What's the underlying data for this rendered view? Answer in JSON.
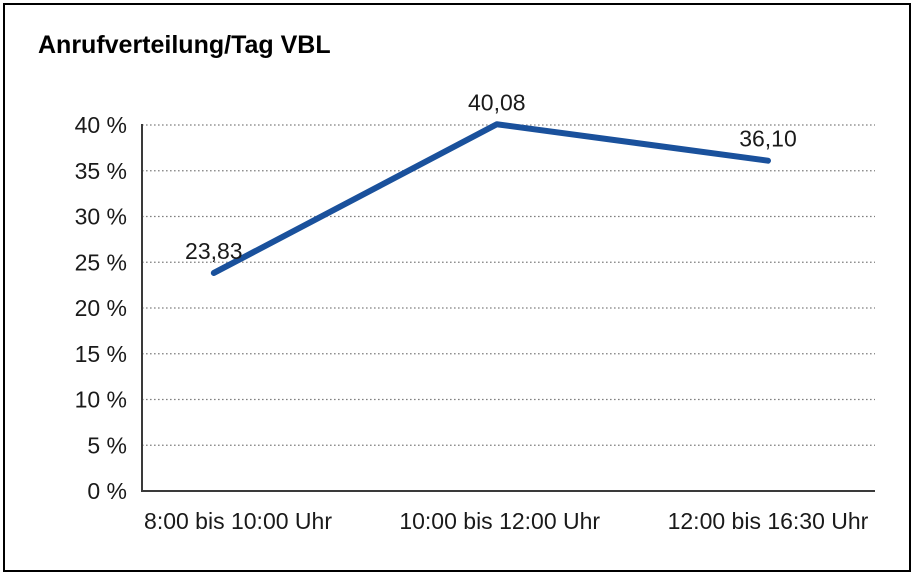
{
  "chart_data": {
    "type": "line",
    "title": "Anrufverteilung/Tag VBL",
    "categories": [
      "8:00 bis 10:00 Uhr",
      "10:00 bis 12:00 Uhr",
      "12:00 bis 16:30 Uhr"
    ],
    "series": [
      {
        "values": [
          23.83,
          40.08,
          36.1
        ]
      }
    ],
    "data_labels": [
      "23,83",
      "40,08",
      "36,10"
    ],
    "ytick_labels": [
      "0 %",
      "5 %",
      "10 %",
      "15 %",
      "20 %",
      "25 %",
      "30 %",
      "35 %",
      "40 %"
    ],
    "ylim": [
      0,
      40
    ],
    "ytick_step": 5,
    "xlabel": "",
    "ylabel": "",
    "grid": "horizontal-dotted",
    "legend": "none",
    "colors": {
      "line": "#1a519c",
      "axis": "#3a3a3a",
      "gridline": "#808080",
      "text": "#1a1a1a",
      "border": "#000000",
      "background": "#ffffff"
    }
  }
}
